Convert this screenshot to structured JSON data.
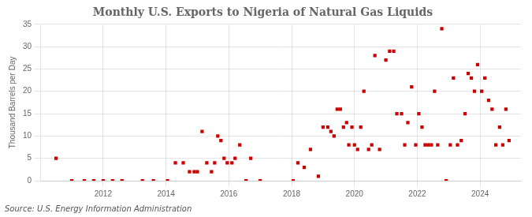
{
  "chart_data": {
    "type": "scatter",
    "title": "Monthly U.S. Exports to Nigeria of Natural Gas Liquids",
    "ylabel": "Thousand Barrels per Day",
    "annotations": [
      "Source: U.S. Energy Information Administration"
    ],
    "color": "#cc0000",
    "marker": "square",
    "grid": true,
    "xlim": [
      2010.0,
      2025.3
    ],
    "xticks": [
      2012,
      2014,
      2016,
      2018,
      2020,
      2022,
      2024
    ],
    "ylim": [
      0,
      35
    ],
    "yticks": [
      0,
      5,
      10,
      15,
      20,
      25,
      30,
      35
    ],
    "x": [
      2010.5,
      2011.0,
      2011.4,
      2011.7,
      2012.0,
      2012.3,
      2012.6,
      2013.25,
      2013.6,
      2014.05,
      2014.3,
      2014.55,
      2014.75,
      2014.9,
      2015.0,
      2015.15,
      2015.3,
      2015.45,
      2015.55,
      2015.65,
      2015.75,
      2015.85,
      2015.95,
      2016.1,
      2016.2,
      2016.35,
      2016.55,
      2016.7,
      2017.0,
      2018.05,
      2018.2,
      2018.4,
      2018.6,
      2018.85,
      2019.0,
      2019.15,
      2019.25,
      2019.35,
      2019.45,
      2019.55,
      2019.65,
      2019.75,
      2019.82,
      2019.92,
      2020.0,
      2020.1,
      2020.2,
      2020.3,
      2020.45,
      2020.55,
      2020.65,
      2020.8,
      2021.0,
      2021.12,
      2021.25,
      2021.35,
      2021.5,
      2021.6,
      2021.7,
      2021.82,
      2021.95,
      2022.05,
      2022.15,
      2022.25,
      2022.35,
      2022.45,
      2022.55,
      2022.65,
      2022.78,
      2022.92,
      2023.05,
      2023.15,
      2023.28,
      2023.4,
      2023.52,
      2023.62,
      2023.72,
      2023.82,
      2023.92,
      2024.05,
      2024.15,
      2024.27,
      2024.38,
      2024.5,
      2024.62,
      2024.72,
      2024.82,
      2024.92
    ],
    "values": [
      5,
      0,
      0,
      0,
      0,
      0,
      0,
      0,
      0,
      0,
      4,
      4,
      2,
      2,
      2,
      11,
      4,
      2,
      4,
      10,
      9,
      5,
      4,
      4,
      5,
      8,
      0,
      5,
      0,
      0,
      4,
      3,
      7,
      1,
      12,
      12,
      11,
      10,
      16,
      16,
      12,
      13,
      8,
      12,
      8,
      7,
      12,
      20,
      7,
      8,
      28,
      7,
      27,
      29,
      29,
      15,
      15,
      8,
      13,
      21,
      8,
      15,
      12,
      8,
      8,
      8,
      20,
      8,
      34,
      0,
      8,
      23,
      8,
      9,
      15,
      24,
      23,
      20,
      26,
      20,
      23,
      18,
      16,
      8,
      12,
      8,
      16,
      9
    ]
  }
}
